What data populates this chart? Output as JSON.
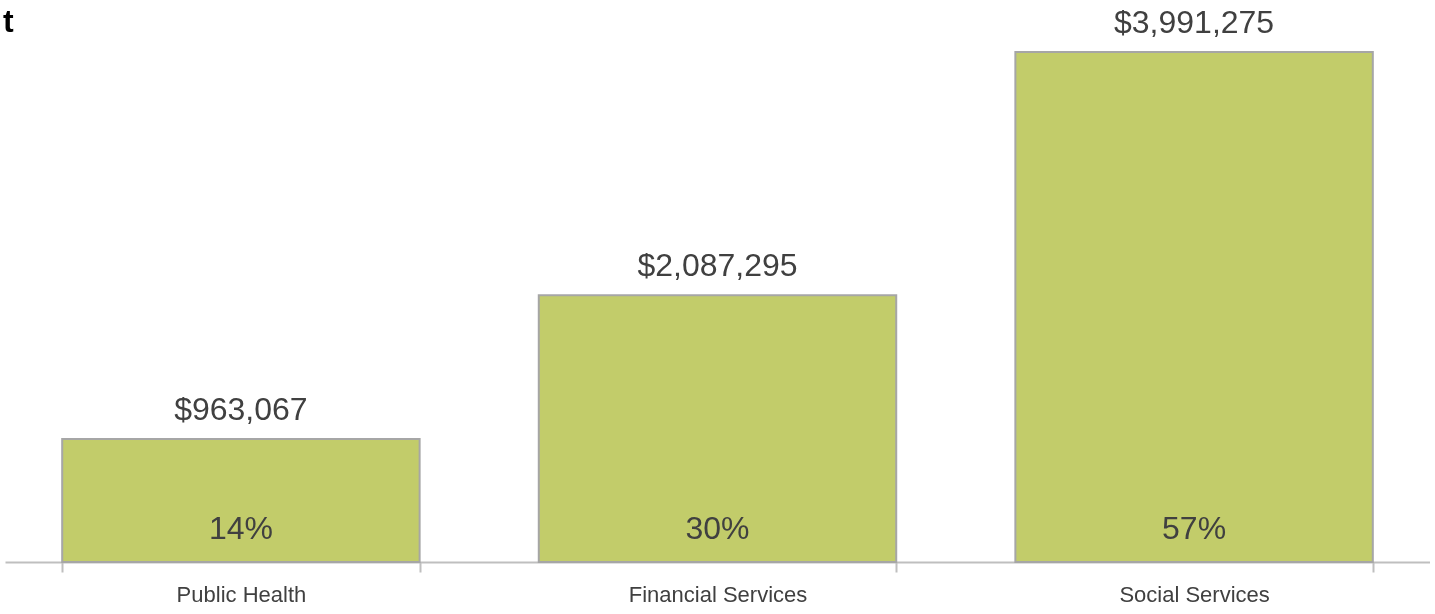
{
  "chart_data": {
    "type": "bar",
    "title": "t",
    "categories": [
      "Public Health",
      "Financial Services",
      "Social Services"
    ],
    "values": [
      963067,
      2087295,
      3991275
    ],
    "color": "#c2cc6a",
    "value_labels": [
      "$963,067",
      "$2,087,295",
      "$3,991,275"
    ],
    "annotations": [
      "14%",
      "30%",
      "57%"
    ],
    "grid": false
  }
}
